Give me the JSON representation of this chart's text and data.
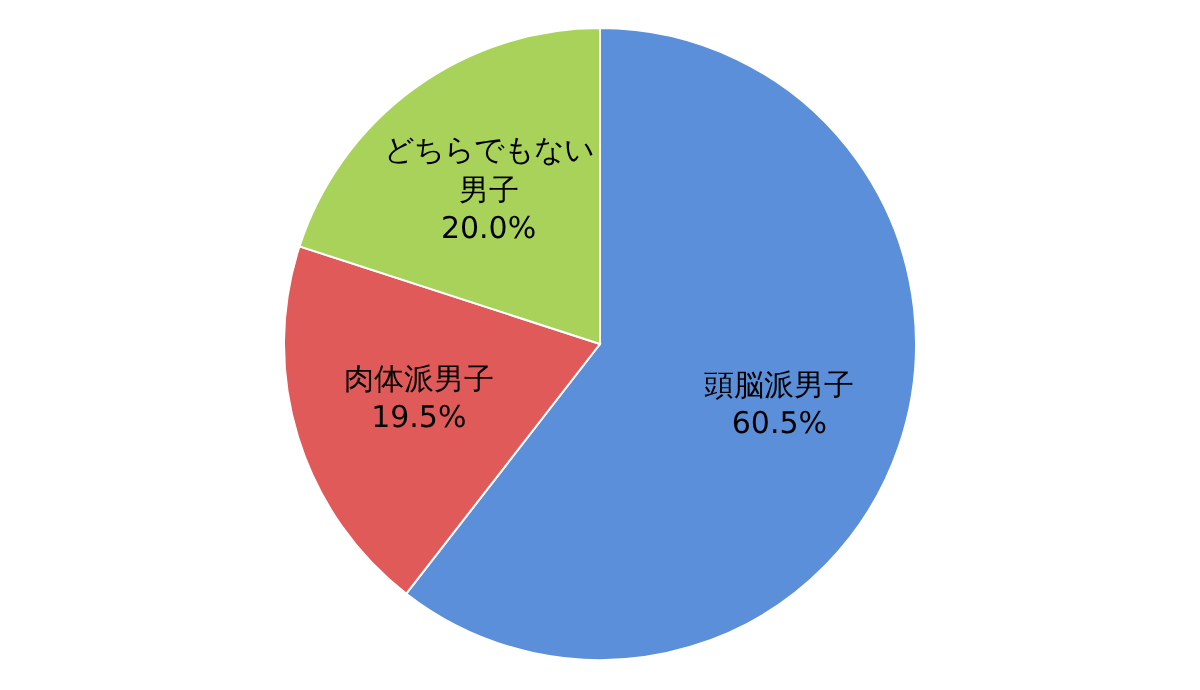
{
  "chart_data": {
    "type": "pie",
    "categories": [
      "頭脳派男子",
      "肉体派男子",
      "どちらでもない男子"
    ],
    "values": [
      60.5,
      19.5,
      20.0
    ],
    "colors": [
      "#5b8fd9",
      "#e05a5a",
      "#a9d25a"
    ],
    "value_labels": [
      "60.5%",
      "19.5%",
      "20.0%"
    ]
  }
}
